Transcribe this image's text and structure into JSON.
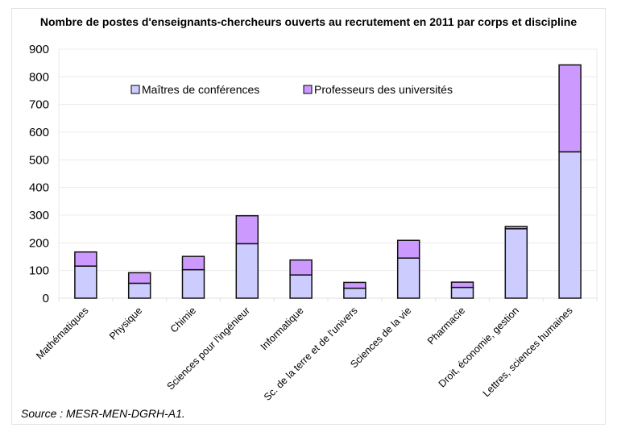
{
  "chart_data": {
    "type": "bar",
    "stacked": true,
    "title": "Nombre de postes d'enseignants-chercheurs ouverts au recrutement en 2011 par corps et discipline",
    "xlabel": "",
    "ylabel": "",
    "ylim": [
      0,
      900
    ],
    "yticks": [
      0,
      100,
      200,
      300,
      400,
      500,
      600,
      700,
      800,
      900
    ],
    "grid": true,
    "legend_position": "top-center",
    "categories": [
      "Mathématiques",
      "Physique",
      "Chimie",
      "Sciences pour l'ingénieur",
      "Informatique",
      "Sc. de la terre et de l'univers",
      "Sciences de la vie",
      "Pharmacie",
      "Droit, économie, gestion",
      "Lettres, sciences humaines"
    ],
    "series": [
      {
        "name": "Maîtres de conférences",
        "color": "#ccccff",
        "values": [
          116,
          54,
          103,
          197,
          84,
          36,
          145,
          39,
          251,
          529
        ]
      },
      {
        "name": "Professeurs des universités",
        "color": "#cc99ff",
        "values": [
          51,
          38,
          48,
          101,
          54,
          21,
          64,
          19,
          8,
          314
        ]
      }
    ],
    "source": "Source : MESR-MEN-DGRH-A1."
  }
}
